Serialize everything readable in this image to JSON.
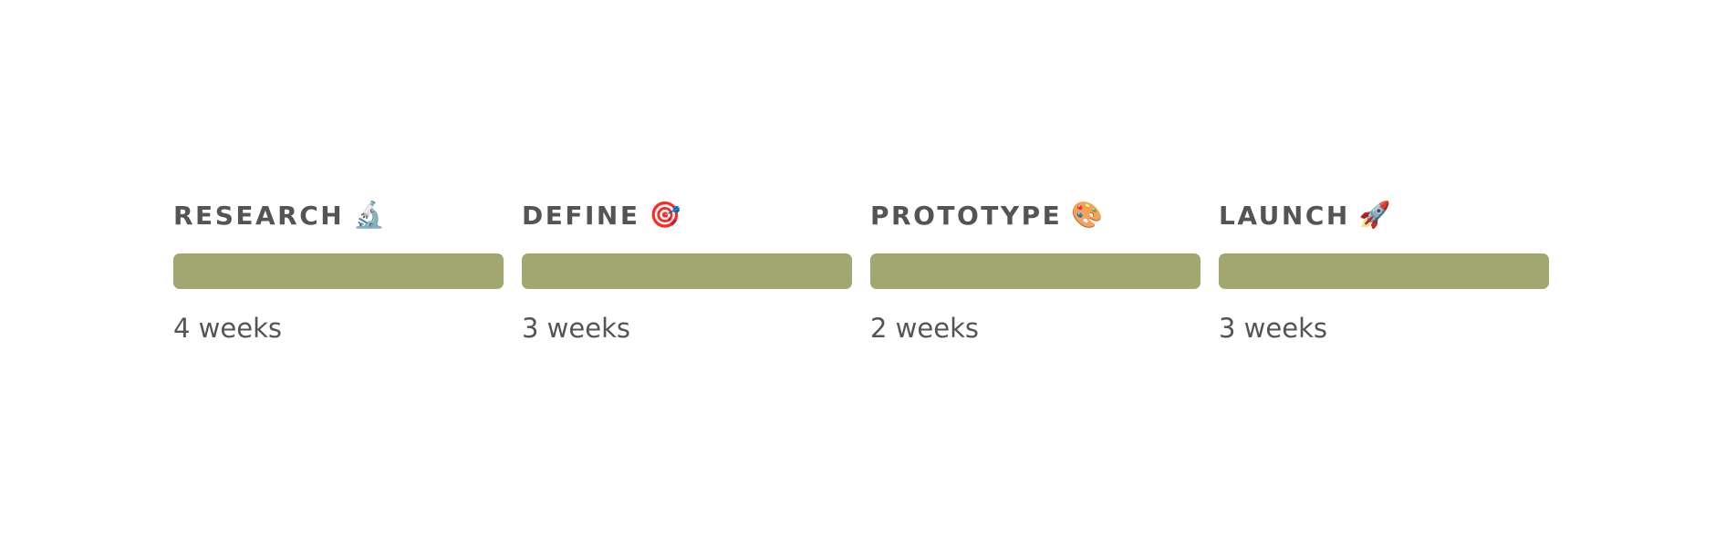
{
  "theme": {
    "bar_color": "#a1a76e",
    "text_color": "#545454"
  },
  "phases": [
    {
      "title": "RESEARCH",
      "icon_name": "microscope-icon",
      "icon": "🔬",
      "duration": "4 weeks"
    },
    {
      "title": "DEFINE",
      "icon_name": "target-icon",
      "icon": "🎯",
      "duration": "3 weeks"
    },
    {
      "title": "PROTOTYPE",
      "icon_name": "palette-icon",
      "icon": "🎨",
      "duration": "2 weeks"
    },
    {
      "title": "LAUNCH",
      "icon_name": "rocket-icon",
      "icon": "🚀",
      "duration": "3 weeks"
    }
  ]
}
